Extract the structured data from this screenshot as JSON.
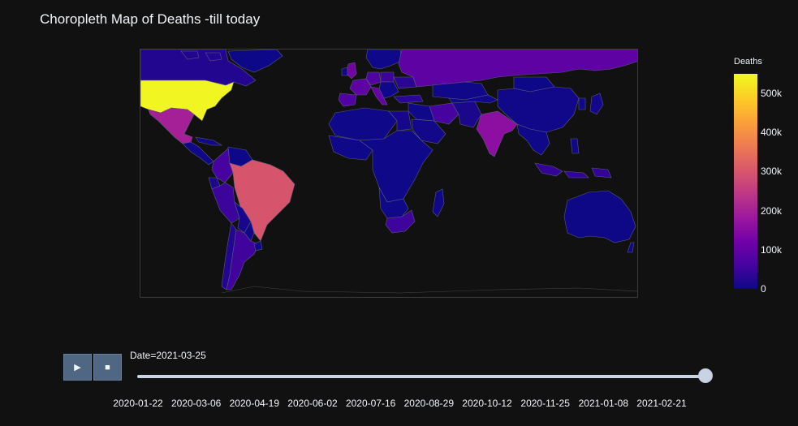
{
  "title": "Choropleth Map of Deaths -till today",
  "colorbar": {
    "title": "Deaths",
    "ticks": [
      {
        "label": "0",
        "value": 0
      },
      {
        "label": "100k",
        "value": 100000
      },
      {
        "label": "200k",
        "value": 200000
      },
      {
        "label": "300k",
        "value": 300000
      },
      {
        "label": "400k",
        "value": 400000
      },
      {
        "label": "500k",
        "value": 500000
      }
    ],
    "max": 550000,
    "colorscale": [
      "#0d0887",
      "#46039f",
      "#7201a8",
      "#9c179e",
      "#bd3786",
      "#d8576b",
      "#ed7953",
      "#fb9f3a",
      "#fdca26",
      "#f0f921"
    ]
  },
  "controls": {
    "play_icon": "play-icon",
    "play_glyph": "▶",
    "stop_icon": "stop-icon",
    "stop_glyph": "■"
  },
  "slider": {
    "current_label": "Date=2021-03-25",
    "current_date": "2021-03-25",
    "position_fraction": 1.0,
    "tick_labels": [
      "2020-01-22",
      "2020-03-06",
      "2020-04-19",
      "2020-06-02",
      "2020-07-16",
      "2020-08-29",
      "2020-10-12",
      "2020-11-25",
      "2021-01-08",
      "2021-02-21"
    ]
  },
  "map": {
    "background": "#111111",
    "border_color": "#5a5a7a",
    "countries": [
      {
        "name": "United States",
        "deaths": 545000
      },
      {
        "name": "Brazil",
        "deaths": 301000
      },
      {
        "name": "Mexico",
        "deaths": 200000
      },
      {
        "name": "India",
        "deaths": 160000
      },
      {
        "name": "Russia",
        "deaths": 95000
      },
      {
        "name": "United Kingdom",
        "deaths": 126000
      },
      {
        "name": "Italy",
        "deaths": 106000
      },
      {
        "name": "France",
        "deaths": 94000
      },
      {
        "name": "Germany",
        "deaths": 75000
      },
      {
        "name": "Spain",
        "deaths": 75000
      },
      {
        "name": "Colombia",
        "deaths": 62000
      },
      {
        "name": "Argentina",
        "deaths": 55000
      },
      {
        "name": "Peru",
        "deaths": 50000
      },
      {
        "name": "South Africa",
        "deaths": 52000
      },
      {
        "name": "Iran",
        "deaths": 62000
      },
      {
        "name": "Poland",
        "deaths": 50000
      },
      {
        "name": "Indonesia",
        "deaths": 40000
      },
      {
        "name": "Canada",
        "deaths": 22000
      },
      {
        "name": "Turkey",
        "deaths": 30000
      },
      {
        "name": "Ukraine",
        "deaths": 30000
      },
      {
        "name": "Chile",
        "deaths": 22000
      },
      {
        "name": "Ecuador",
        "deaths": 16000
      },
      {
        "name": "Bolivia",
        "deaths": 12000
      },
      {
        "name": "Venezuela",
        "deaths": 1500
      },
      {
        "name": "China",
        "deaths": 4800
      },
      {
        "name": "Australia",
        "deaths": 900
      },
      {
        "name": "Egypt",
        "deaths": 11000
      },
      {
        "name": "Pakistan",
        "deaths": 14000
      },
      {
        "name": "Kazakhstan",
        "deaths": 3000
      },
      {
        "name": "Mongolia",
        "deaths": 10
      },
      {
        "name": "Japan",
        "deaths": 9000
      },
      {
        "name": "Saudi Arabia",
        "deaths": 6700
      },
      {
        "name": "Greenland",
        "deaths": 0
      }
    ]
  }
}
